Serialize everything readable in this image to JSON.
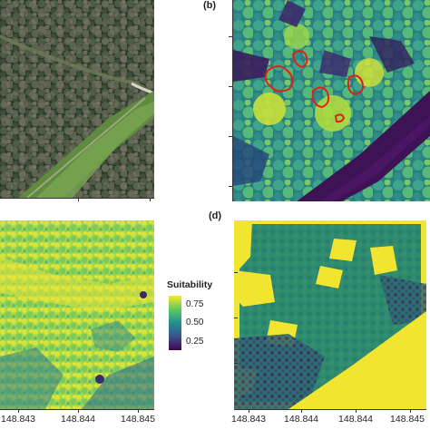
{
  "panels": {
    "b": {
      "tag": "(b)"
    },
    "d": {
      "tag": "(d)"
    }
  },
  "legend": {
    "title": "Suitability",
    "labels": [
      "0.75",
      "0.50",
      "0.25"
    ],
    "colors": [
      "#440154",
      "#3b528b",
      "#21908d",
      "#5dc963",
      "#fde725"
    ]
  },
  "x_axis": {
    "left_ticks": [
      "148.843",
      "148.844",
      "148.845"
    ],
    "right_ticks": [
      "148.843",
      "148.844",
      "148.844",
      "148.845"
    ]
  },
  "colors": {
    "ortho_dark": "#2f3a2a",
    "viridis_yellow": "#f2e530",
    "viridis_teal": "#2a8a7f",
    "viridis_dark": "#3d1355",
    "outline_red": "#e0201b",
    "class_green": "#2e8b6e"
  }
}
